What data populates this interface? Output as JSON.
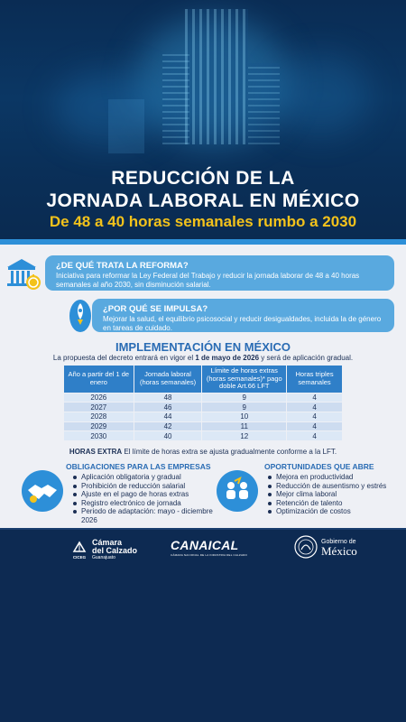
{
  "hero": {
    "title_line1": "REDUCCIÓN DE LA",
    "title_line2": "JORNADA LABORAL EN MÉXICO",
    "subtitle": "De 48 a 40 horas semanales rumbo a 2030"
  },
  "reforma": {
    "heading": "¿DE QUÉ TRATA LA REFORMA?",
    "text": "Iniciativa para reformar la Ley Federal del Trabajo y reducir la jornada laborar de 48 a 40 horas semanales al año 2030, sin disminución salarial."
  },
  "impulsa": {
    "heading": "¿POR QUÉ SE IMPULSA?",
    "text": "Mejorar la salud, el equilibrio psicosocial y reducir desigualdades, incluida la de género en tareas de cuidado."
  },
  "implementacion": {
    "title": "IMPLEMENTACIÓN EN MÉXICO",
    "intro_before": "La propuesta del decreto entrará en vigor el ",
    "intro_bold": "1 de mayo de 2026",
    "intro_after": " y será de aplicación gradual.",
    "headers": [
      "Año a partir del 1 de enero",
      "Jornada laboral (horas semanales)",
      "Límite de horas extras (horas semanales)* pago doble Art.66 LFT",
      "Horas triples semanales"
    ],
    "rows": [
      [
        "2026",
        "48",
        "9",
        "4"
      ],
      [
        "2027",
        "46",
        "9",
        "4"
      ],
      [
        "2028",
        "44",
        "10",
        "4"
      ],
      [
        "2029",
        "42",
        "11",
        "4"
      ],
      [
        "2030",
        "40",
        "12",
        "4"
      ]
    ],
    "extra_bold": "HORAS EXTRA",
    "extra_text": " El límite de horas extra se ajusta gradualmente conforme a la LFT."
  },
  "obligaciones": {
    "title": "OBLIGACIONES PARA LAS EMPRESAS",
    "items": [
      "Aplicación obligatoria y gradual",
      "Prohibición de reducción salarial",
      "Ajuste en el pago de horas extras",
      "Registro electrónico de jornada",
      "Periodo de adaptación: mayo - diciembre 2026"
    ]
  },
  "oportunidades": {
    "title": "OPORTUNIDADES QUE ABRE",
    "items": [
      "Mejora en productividad",
      "Reducción de ausentismo y estrés",
      "Mejor clima laboral",
      "Retención de talento",
      "Optimización de costos"
    ]
  },
  "footer": {
    "logo1_line1": "Cámara",
    "logo1_line2": "del Calzado",
    "logo1_line3": "Guanajuato",
    "logo1_abbr": "CICEG",
    "logo2_name": "CANAICAL",
    "logo2_tagline": "CÁMARA NACIONAL DE LA INDUSTRIA DEL CALZADO",
    "logo3_line1": "Gobierno de",
    "logo3_line2": "México"
  },
  "colors": {
    "navy": "#0d2a52",
    "accent_blue": "#2d8fd8",
    "box_blue": "#59a9df",
    "subtitle_yellow": "#f3c21b",
    "heading_blue": "#2a6cb4"
  },
  "icons": [
    "government-building-icon",
    "rocket-head-icon",
    "handshake-icon",
    "team-growth-icon"
  ]
}
